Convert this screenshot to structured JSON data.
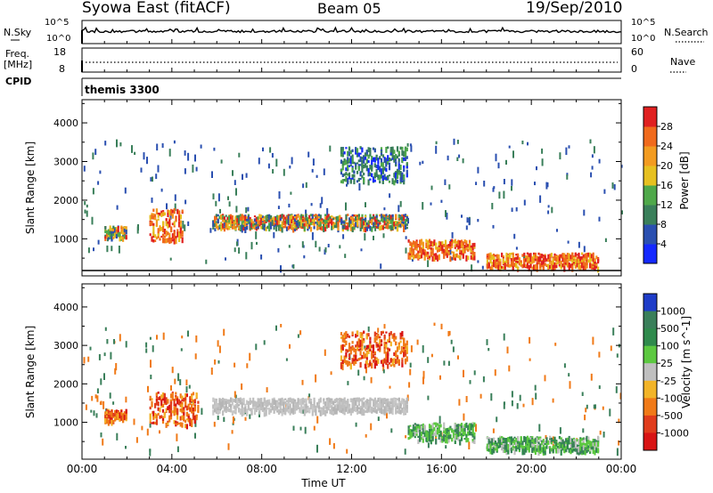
{
  "header": {
    "station": "Syowa East (fitACF)",
    "beam": "Beam 05",
    "date": "19/Sep/2010"
  },
  "top_panels": {
    "nsky_label": "N.Sky",
    "nsky_ticks": [
      "10^5",
      "10^0"
    ],
    "nsearch_label": "N.Search",
    "freq_label": "Freq.",
    "freq_unit": "[MHz]",
    "freq_ticks": [
      "18",
      "8"
    ],
    "nave_label": "Nave",
    "nave_ticks": [
      "60",
      "0"
    ],
    "cpid_label": "CPID",
    "cpid_value": "themis 3300"
  },
  "chart_data": [
    {
      "type": "heatmap",
      "title": "",
      "ylabel": "Slant Range [km]",
      "xlabel": "",
      "xlim": [
        "00:00",
        "24:00"
      ],
      "ylim": [
        180,
        4600
      ],
      "x_ticks": [
        "00:00",
        "04:00",
        "08:00",
        "12:00",
        "16:00",
        "20:00",
        "00:00"
      ],
      "y_ticks": [
        1000,
        2000,
        3000,
        4000
      ],
      "colorbar": {
        "label": "Power [dB]",
        "ticks": [
          "4",
          "8",
          "12",
          "16",
          "20",
          "24",
          "28"
        ],
        "colors": [
          "#1428ff",
          "#2a4fb0",
          "#3a7f5a",
          "#4fa84a",
          "#e6c020",
          "#f29b20",
          "#f06a1c",
          "#e02020"
        ]
      },
      "echo_bands": [
        {
          "x": [
            1.0,
            2.0
          ],
          "y": [
            1050,
            1350
          ],
          "level": "mixed"
        },
        {
          "x": [
            3.0,
            4.5
          ],
          "y": [
            950,
            1800
          ],
          "level": "high"
        },
        {
          "x": [
            5.8,
            14.5
          ],
          "y": [
            1300,
            1650
          ],
          "level": "mixed"
        },
        {
          "x": [
            11.5,
            14.5
          ],
          "y": [
            2500,
            3400
          ],
          "level": "low"
        },
        {
          "x": [
            14.5,
            17.5
          ],
          "y": [
            550,
            1000
          ],
          "level": "high"
        },
        {
          "x": [
            18.0,
            23.0
          ],
          "y": [
            280,
            650
          ],
          "level": "high"
        }
      ]
    },
    {
      "type": "heatmap",
      "title": "",
      "ylabel": "Slant Range [km]",
      "xlabel": "Time UT",
      "xlim": [
        "00:00",
        "24:00"
      ],
      "ylim": [
        180,
        4600
      ],
      "x_ticks": [
        "00:00",
        "04:00",
        "08:00",
        "12:00",
        "16:00",
        "20:00",
        "00:00"
      ],
      "y_ticks": [
        1000,
        2000,
        3000,
        4000
      ],
      "colorbar": {
        "label": "Velocity [m s^-1]",
        "ticks": [
          "1000",
          "500",
          "100",
          "25",
          "-25",
          "-100",
          "-500",
          "-1000"
        ],
        "colors": [
          "#1e3cc8",
          "#3a7f5a",
          "#2f8a4c",
          "#5cc840",
          "#bfbfbf",
          "#f2b428",
          "#f07a18",
          "#e03c1c",
          "#d81414"
        ]
      },
      "echo_bands": [
        {
          "x": [
            1.0,
            2.0
          ],
          "y": [
            1050,
            1350
          ],
          "level": "away"
        },
        {
          "x": [
            3.0,
            5.2
          ],
          "y": [
            950,
            1800
          ],
          "level": "away"
        },
        {
          "x": [
            5.8,
            14.5
          ],
          "y": [
            1300,
            1650
          ],
          "level": "near-zero"
        },
        {
          "x": [
            11.5,
            14.5
          ],
          "y": [
            2500,
            3400
          ],
          "level": "away"
        },
        {
          "x": [
            14.5,
            17.5
          ],
          "y": [
            550,
            1000
          ],
          "level": "toward"
        },
        {
          "x": [
            18.0,
            23.0
          ],
          "y": [
            280,
            650
          ],
          "level": "toward"
        }
      ]
    }
  ]
}
